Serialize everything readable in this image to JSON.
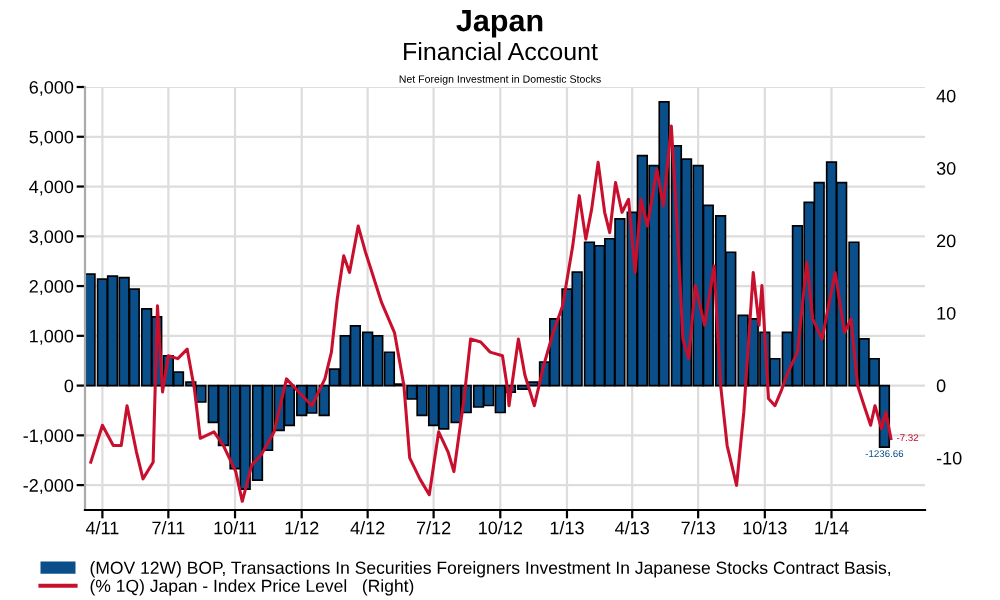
{
  "chart_data": {
    "type": "bar",
    "title": "Japan",
    "subtitle": "Financial Account",
    "annotations": [
      "Net Foreign Investment in Domestic Stocks"
    ],
    "x": [
      "2011-03-15",
      "2011-04-01",
      "2011-04-15",
      "2011-05-01",
      "2011-05-15",
      "2011-06-01",
      "2011-06-15",
      "2011-07-01",
      "2011-07-15",
      "2011-08-01",
      "2011-08-15",
      "2011-09-01",
      "2011-09-15",
      "2011-10-01",
      "2011-10-15",
      "2011-11-01",
      "2011-11-15",
      "2011-12-01",
      "2011-12-15",
      "2012-01-01",
      "2012-01-15",
      "2012-02-01",
      "2012-02-15",
      "2012-03-01",
      "2012-03-15",
      "2012-04-01",
      "2012-04-15",
      "2012-05-01",
      "2012-05-15",
      "2012-06-01",
      "2012-06-15",
      "2012-07-01",
      "2012-07-15",
      "2012-08-01",
      "2012-08-15",
      "2012-09-01",
      "2012-09-15",
      "2012-10-01",
      "2012-10-15",
      "2012-11-01",
      "2012-11-15",
      "2012-12-01",
      "2012-12-15",
      "2013-01-01",
      "2013-01-15",
      "2013-02-01",
      "2013-02-15",
      "2013-03-01",
      "2013-03-15",
      "2013-04-01",
      "2013-04-15",
      "2013-05-01",
      "2013-05-15",
      "2013-06-01",
      "2013-06-15",
      "2013-07-01",
      "2013-07-15",
      "2013-08-01",
      "2013-08-15",
      "2013-09-01",
      "2013-09-15",
      "2013-10-01",
      "2013-10-15",
      "2013-11-01",
      "2013-11-15",
      "2013-12-01",
      "2013-12-15",
      "2014-01-01",
      "2014-01-15",
      "2014-02-01",
      "2014-02-15",
      "2014-03-01",
      "2014-03-15"
    ],
    "series": [
      {
        "name": "(MOV 12W) BOP, Transactions In Securities Foreigners Investment In Japanese Stocks Contract Basis,",
        "color": "#0b4f8a",
        "values": [
          2240,
          2140,
          2200,
          2170,
          1940,
          1540,
          1380,
          600,
          270,
          70,
          -330,
          -740,
          -1200,
          -1670,
          -2080,
          -1900,
          -1300,
          -900,
          -800,
          -600,
          -550,
          -600,
          330,
          1000,
          1200,
          1070,
          1000,
          670,
          30,
          -270,
          -600,
          -800,
          -870,
          -740,
          -540,
          -430,
          -400,
          -540,
          -130,
          -70,
          70,
          470,
          1340,
          1940,
          2280,
          2880,
          2810,
          2950,
          3350,
          3480,
          4620,
          4420,
          5700,
          4820,
          4550,
          4420,
          3620,
          3410,
          2680,
          1410,
          1340,
          1070,
          540,
          1070,
          3210,
          3680,
          4080,
          4490,
          4080,
          2880,
          940,
          540,
          -1236.66
        ],
        "value_labels": [
          null,
          null,
          null,
          null,
          null,
          null,
          null,
          null,
          null,
          null,
          null,
          null,
          null,
          null,
          null,
          null,
          null,
          null,
          null,
          null,
          null,
          null,
          null,
          null,
          null,
          null,
          null,
          null,
          null,
          null,
          null,
          null,
          null,
          null,
          null,
          null,
          null,
          null,
          null,
          null,
          null,
          null,
          null,
          null,
          null,
          null,
          null,
          null,
          null,
          null,
          null,
          null,
          null,
          null,
          null,
          null,
          null,
          null,
          null,
          null,
          null,
          null,
          null,
          null,
          null,
          null,
          null,
          null,
          null,
          null,
          null,
          null,
          "-1236.66"
        ]
      },
      {
        "name": "(% 1Q) Japan - Index Price Level   (Right)",
        "type": "line",
        "axis": "y2",
        "color": "#c8102e",
        "x": [
          "2011-03-16",
          "2011-04-01",
          "2011-04-16",
          "2011-04-27",
          "2011-05-05",
          "2011-05-18",
          "2011-05-27",
          "2011-06-10",
          "2011-06-16",
          "2011-06-23",
          "2011-07-01",
          "2011-07-14",
          "2011-07-27",
          "2011-08-06",
          "2011-08-14",
          "2011-09-02",
          "2011-09-15",
          "2011-10-02",
          "2011-10-11",
          "2011-10-24",
          "2011-11-06",
          "2011-11-24",
          "2011-12-11",
          "2011-12-28",
          "2012-01-15",
          "2012-02-02",
          "2012-02-11",
          "2012-02-19",
          "2012-02-28",
          "2012-03-07",
          "2012-03-19",
          "2012-03-29",
          "2012-04-07",
          "2012-04-20",
          "2012-05-08",
          "2012-05-21",
          "2012-05-29",
          "2012-06-12",
          "2012-06-25",
          "2012-07-08",
          "2012-07-21",
          "2012-07-29",
          "2012-08-12",
          "2012-08-21",
          "2012-09-04",
          "2012-09-17",
          "2012-10-04",
          "2012-10-11",
          "2012-10-13",
          "2012-10-26",
          "2012-11-04",
          "2012-11-17",
          "2012-11-30",
          "2012-12-13",
          "2012-12-26",
          "2013-01-09",
          "2013-01-18",
          "2013-01-27",
          "2013-02-04",
          "2013-02-13",
          "2013-02-22",
          "2013-03-01",
          "2013-03-09",
          "2013-03-18",
          "2013-03-27",
          "2013-04-05",
          "2013-04-13",
          "2013-04-22",
          "2013-05-05",
          "2013-05-14",
          "2013-05-25",
          "2013-06-01",
          "2013-06-10",
          "2013-06-18",
          "2013-06-27",
          "2013-07-10",
          "2013-07-23",
          "2013-08-01",
          "2013-08-10",
          "2013-08-23",
          "2013-09-02",
          "2013-09-15",
          "2013-09-23",
          "2013-09-27",
          "2013-10-06",
          "2013-10-15",
          "2013-10-23",
          "2013-11-02",
          "2013-11-15",
          "2013-11-28",
          "2013-12-06",
          "2013-12-19",
          "2014-01-06",
          "2014-01-19",
          "2014-01-28",
          "2014-02-06",
          "2014-02-15",
          "2014-02-24",
          "2014-03-02",
          "2014-03-11",
          "2014-03-17",
          "2014-03-24"
        ],
        "values": [
          -10.6,
          -5.5,
          -8.3,
          -8.3,
          -2.8,
          -9.2,
          -12.9,
          -10.6,
          11,
          -0.9,
          4.1,
          3.7,
          5,
          -0.5,
          -7.3,
          -6.4,
          -8.3,
          -11.9,
          -16,
          -11,
          -9.6,
          -6.4,
          0.9,
          -0.9,
          -2.8,
          0.9,
          4.6,
          11.9,
          17.9,
          15.6,
          22,
          18.4,
          15.6,
          11.5,
          7.3,
          0,
          -10,
          -12.9,
          -15.1,
          -6.4,
          -9.2,
          -11.9,
          -1.8,
          6.4,
          6,
          4.6,
          4.1,
          -0.5,
          -2.8,
          6.4,
          1.4,
          -2.8,
          2.8,
          7.3,
          11,
          19.3,
          26.2,
          20.2,
          24.3,
          30.8,
          23.9,
          21.1,
          28,
          23.9,
          25.7,
          15.6,
          25.7,
          22,
          29.8,
          24.8,
          35.8,
          23.9,
          6.4,
          3.7,
          13.8,
          8.3,
          16.5,
          0,
          -8.3,
          -13.8,
          -3.7,
          15.6,
          8.3,
          13.8,
          -1.8,
          -2.8,
          -0.9,
          1.8,
          4.6,
          17,
          9.2,
          6.4,
          15.6,
          7.3,
          9.2,
          0,
          -2.8,
          -5.5,
          -2.8,
          -6,
          -3.7,
          -7.32
        ],
        "value_labels": [
          null,
          null,
          null,
          null,
          null,
          null,
          null,
          null,
          null,
          null,
          null,
          null,
          null,
          null,
          null,
          null,
          null,
          null,
          null,
          null,
          null,
          null,
          null,
          null,
          null,
          null,
          null,
          null,
          null,
          null,
          null,
          null,
          null,
          null,
          null,
          null,
          null,
          null,
          null,
          null,
          null,
          null,
          null,
          null,
          null,
          null,
          null,
          null,
          null,
          null,
          null,
          null,
          null,
          null,
          null,
          null,
          null,
          null,
          null,
          null,
          null,
          null,
          null,
          null,
          null,
          null,
          null,
          null,
          null,
          null,
          null,
          null,
          null,
          null,
          null,
          null,
          null,
          null,
          null,
          null,
          null,
          null,
          null,
          null,
          null,
          null,
          null,
          null,
          null,
          null,
          null,
          null,
          null,
          null,
          null,
          null,
          null,
          null,
          null,
          null,
          null,
          "-7.32"
        ]
      }
    ],
    "xlim": [
      "2011-03-08",
      "2014-05-10"
    ],
    "xticks": [
      {
        "value": "2011-04-01",
        "label": "4/11"
      },
      {
        "value": "2011-07-01",
        "label": "7/11"
      },
      {
        "value": "2011-10-01",
        "label": "10/11"
      },
      {
        "value": "2012-01-01",
        "label": "1/12"
      },
      {
        "value": "2012-04-01",
        "label": "4/12"
      },
      {
        "value": "2012-07-01",
        "label": "7/12"
      },
      {
        "value": "2012-10-01",
        "label": "10/12"
      },
      {
        "value": "2013-01-01",
        "label": "1/13"
      },
      {
        "value": "2013-04-01",
        "label": "4/13"
      },
      {
        "value": "2013-07-01",
        "label": "7/13"
      },
      {
        "value": "2013-10-01",
        "label": "10/13"
      },
      {
        "value": "2014-01-01",
        "label": "1/14"
      }
    ],
    "ylim": [
      -2500,
      6000
    ],
    "yticks": [
      {
        "value": -2000,
        "label": "-2,000"
      },
      {
        "value": -1000,
        "label": "-1,000"
      },
      0,
      {
        "value": 1000,
        "label": "1,000"
      },
      {
        "value": 2000,
        "label": "2,000"
      },
      {
        "value": 3000,
        "label": "3,000"
      },
      {
        "value": 4000,
        "label": "4,000"
      },
      {
        "value": 5000,
        "label": "5,000"
      },
      {
        "value": 6000,
        "label": "6,000"
      }
    ],
    "y2lim": [
      -17.2,
      41.2
    ],
    "y2ticks": [
      -10,
      0,
      10,
      20,
      30,
      40
    ],
    "grid": true,
    "legend": "bottom"
  }
}
